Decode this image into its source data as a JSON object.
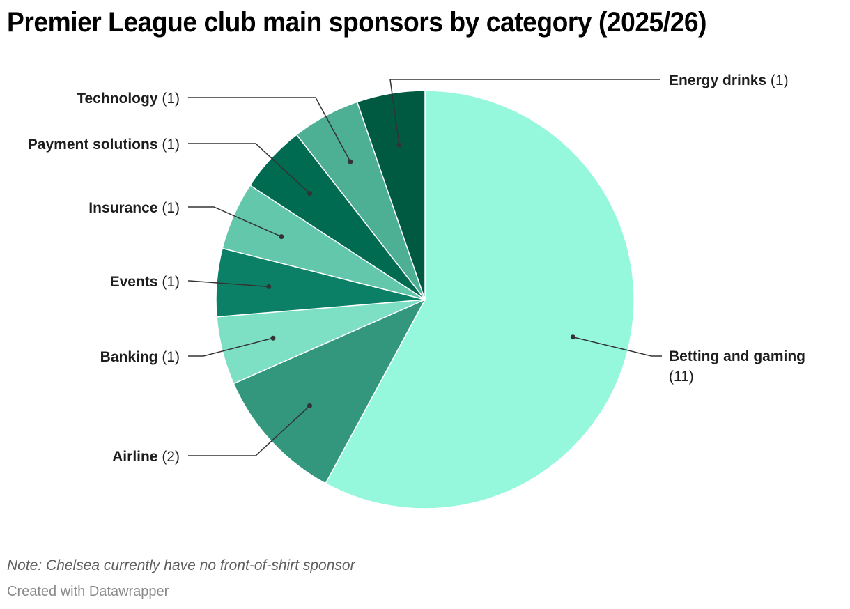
{
  "title": "Premier League club main sponsors by category (2025/26)",
  "note": "Note: Chelsea currently have no front-of-shirt sponsor",
  "credit": "Created with Datawrapper",
  "chart_data": {
    "type": "pie",
    "title": "Premier League club main sponsors by category (2025/26)",
    "categories": [
      "Betting and gaming",
      "Airline",
      "Banking",
      "Events",
      "Insurance",
      "Payment solutions",
      "Technology",
      "Energy drinks"
    ],
    "values": [
      11,
      2,
      1,
      1,
      1,
      1,
      1,
      1
    ],
    "colors": [
      "#95f7db",
      "#32977d",
      "#7ddfc3",
      "#0c8066",
      "#63c7ab",
      "#006b51",
      "#4daf94",
      "#005a41"
    ],
    "start_angle": "12 o'clock, clockwise",
    "annotation": "Note: Chelsea currently have no front-of-shirt sponsor"
  },
  "labels": [
    {
      "name": "Betting and gaming",
      "value": "(11)"
    },
    {
      "name": "Airline",
      "value": "(2)"
    },
    {
      "name": "Banking",
      "value": "(1)"
    },
    {
      "name": "Events",
      "value": "(1)"
    },
    {
      "name": "Insurance",
      "value": "(1)"
    },
    {
      "name": "Payment solutions",
      "value": "(1)"
    },
    {
      "name": "Technology",
      "value": "(1)"
    },
    {
      "name": "Energy drinks",
      "value": "(1)"
    }
  ]
}
